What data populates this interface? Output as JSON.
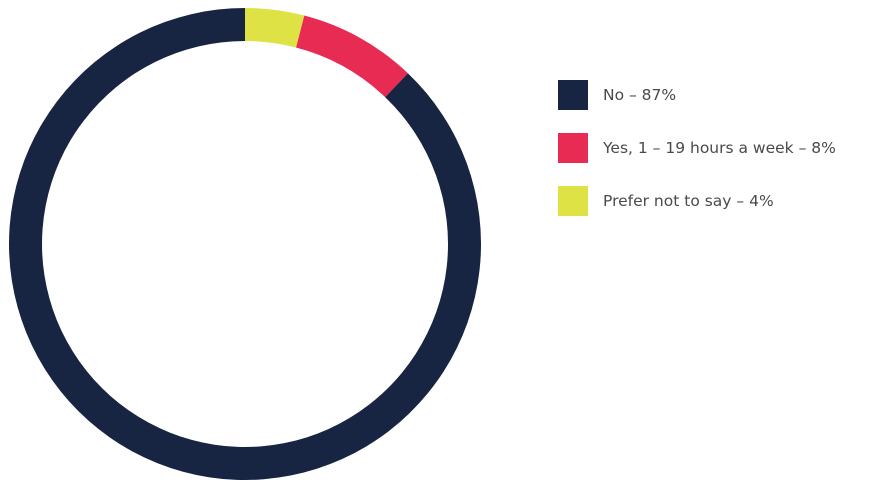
{
  "chart_data": {
    "type": "pie",
    "variant": "donut",
    "start_angle_deg": 0,
    "direction": "counterclockwise",
    "legend_position": "right",
    "slices": [
      {
        "label": "No – 87%",
        "value": 87,
        "color": "#172542"
      },
      {
        "label": "Yes, 1 – 19 hours a week – 8%",
        "value": 8,
        "color": "#e72b52"
      },
      {
        "label": "Prefer not to say – 4%",
        "value": 4,
        "color": "#dfe244"
      }
    ]
  }
}
